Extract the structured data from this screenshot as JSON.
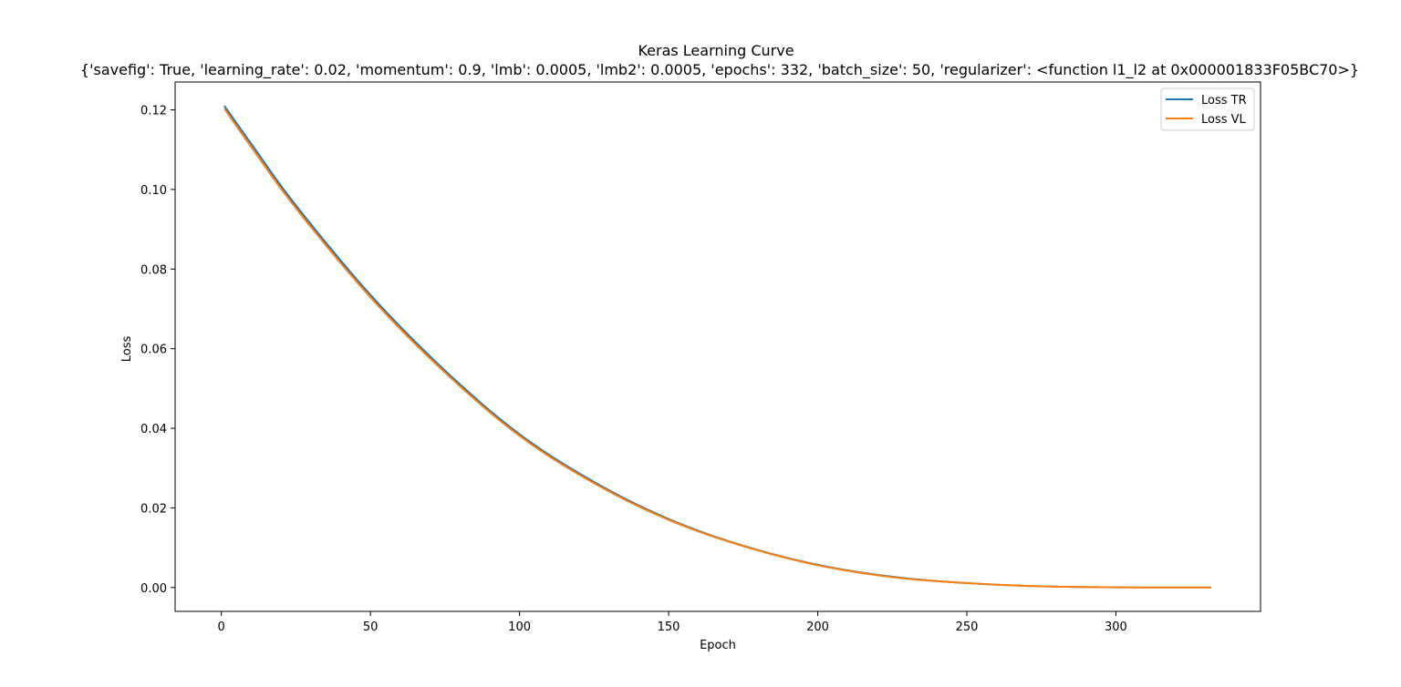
{
  "chart_data": {
    "type": "line",
    "title": "Keras Learning Curve",
    "subtitle": "{'savefig': True, 'learning_rate': 0.02, 'momentum': 0.9, 'lmb': 0.0005, 'lmb2': 0.0005, 'epochs': 332, 'batch_size': 50, 'regularizer': <function l1_l2 at 0x000001833F05BC70>}",
    "xlabel": "Epoch",
    "ylabel": "Loss",
    "xlim": [
      -15.5,
      348.5
    ],
    "ylim": [
      -0.006,
      0.127
    ],
    "xticks": [
      0,
      50,
      100,
      150,
      200,
      250,
      300
    ],
    "yticks": [
      0.0,
      0.02,
      0.04,
      0.06,
      0.08,
      0.1,
      0.12
    ],
    "ytick_labels": [
      "0.00",
      "0.02",
      "0.04",
      "0.06",
      "0.08",
      "0.10",
      "0.12"
    ],
    "grid": false,
    "legend_position": "top-right",
    "series": [
      {
        "name": "Loss TR",
        "color": "#1f77b4",
        "x": [
          1,
          10,
          25,
          50,
          75,
          100,
          125,
          150,
          175,
          200,
          225,
          250,
          275,
          300,
          332
        ],
        "y": [
          0.121,
          0.1115,
          0.096,
          0.0735,
          0.0545,
          0.0385,
          0.0265,
          0.0172,
          0.0105,
          0.0057,
          0.0027,
          0.0011,
          0.0003,
          5e-05,
          0.0
        ]
      },
      {
        "name": "Loss VL",
        "color": "#ff7f0e",
        "x": [
          1,
          10,
          25,
          50,
          75,
          100,
          125,
          150,
          175,
          200,
          225,
          250,
          275,
          300,
          332
        ],
        "y": [
          0.1203,
          0.1107,
          0.0953,
          0.0729,
          0.054,
          0.0381,
          0.0262,
          0.017,
          0.0104,
          0.0056,
          0.0026,
          0.0011,
          0.0003,
          5e-05,
          0.0
        ]
      }
    ]
  }
}
